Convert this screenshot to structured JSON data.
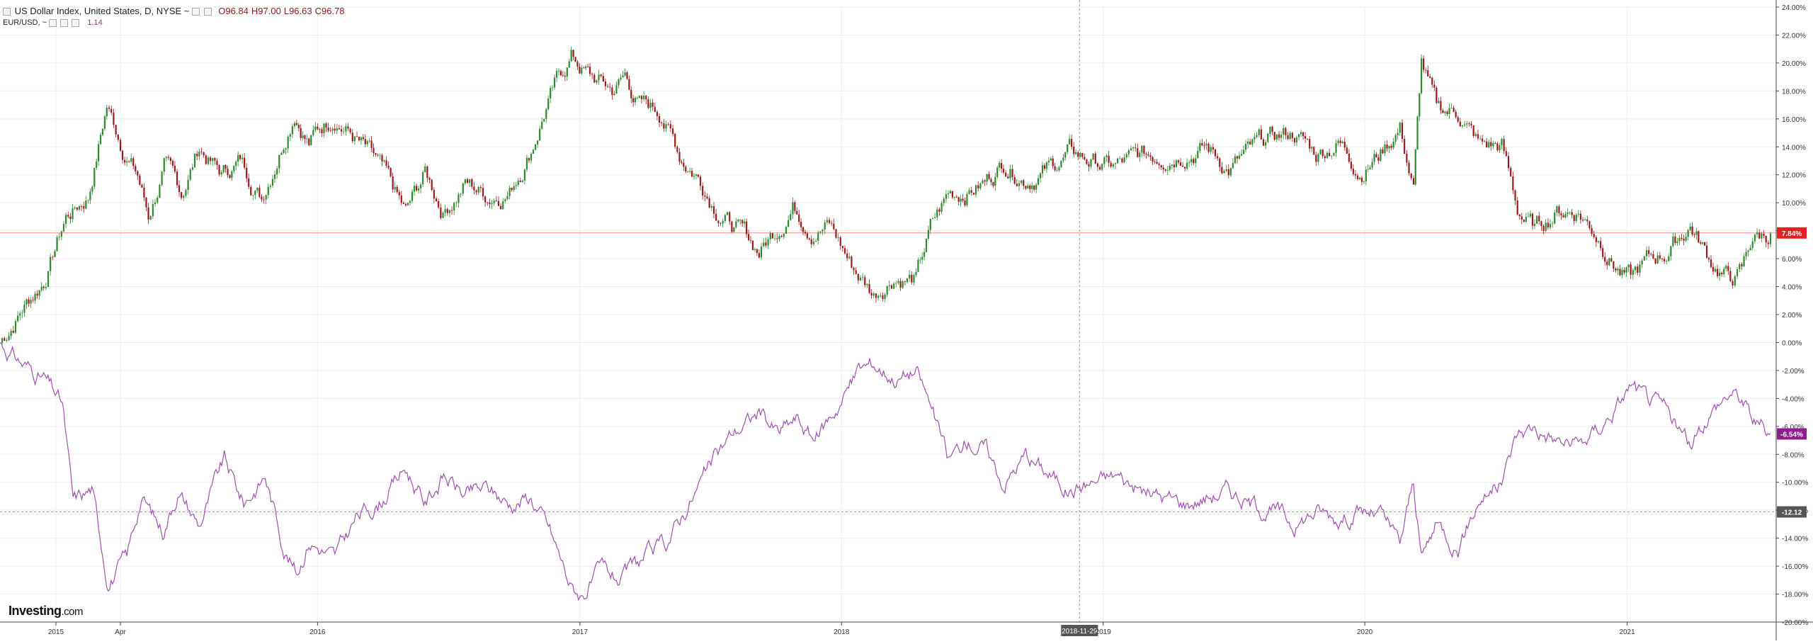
{
  "legend_main": {
    "title": "US Dollar Index, United States, D, NYSE",
    "caret": "~",
    "open": "O96.84",
    "high": "H97.00",
    "low": "L96.63",
    "close": "C96.78"
  },
  "legend_compare": {
    "symbol": "EUR/USD,",
    "caret": "~",
    "value": "1.14"
  },
  "logo": {
    "brand": "Investing",
    "suffix": ".com"
  },
  "colors": {
    "up": "#2e8b2e",
    "down": "#9b1b1b",
    "compare_line": "#a050b0",
    "ref_line": "#f28b8b",
    "grid": "#eeeeee",
    "badge_main": "#e02222",
    "badge_compare": "#8b1f8b",
    "badge_dashed": "#555555"
  },
  "chart_data": {
    "type": "line",
    "scale": "percent",
    "ylim": [
      -20,
      24
    ],
    "y_ticks": [
      "24.00%",
      "22.00%",
      "20.00%",
      "18.00%",
      "16.00%",
      "14.00%",
      "12.00%",
      "10.00%",
      "8.00%",
      "6.00%",
      "4.00%",
      "2.00%",
      "0.00%",
      "-2.00%",
      "-4.00%",
      "-6.00%",
      "-8.00%",
      "-10.00%",
      "-12.00%",
      "-14.00%",
      "-16.00%",
      "-18.00%",
      "-20.00%"
    ],
    "x_ticks": [
      {
        "label": "2015",
        "x": "2015-01-01"
      },
      {
        "label": "Apr",
        "x": "2015-04-01"
      },
      {
        "label": "2016",
        "x": "2016-01-01"
      },
      {
        "label": "2017",
        "x": "2017-01-01"
      },
      {
        "label": "2018",
        "x": "2018-01-01"
      },
      {
        "label": "2019",
        "x": "2019-01-01"
      },
      {
        "label": "2020",
        "x": "2020-01-01"
      },
      {
        "label": "2021",
        "x": "2021-01-01"
      }
    ],
    "x_range": [
      "2014-10-15",
      "2021-07-20"
    ],
    "crosshair": {
      "x": "2018-11-29",
      "label": "2018-11-29"
    },
    "series": [
      {
        "kind": "candlestick",
        "points": [
          [
            "2014-10-15",
            0.0
          ],
          [
            "2014-11-15",
            2.5
          ],
          [
            "2014-12-15",
            4.5
          ],
          [
            "2015-01-15",
            9.0
          ],
          [
            "2015-02-15",
            10.5
          ],
          [
            "2015-03-13",
            17.0
          ],
          [
            "2015-04-01",
            14.5
          ],
          [
            "2015-04-25",
            12.0
          ],
          [
            "2015-05-10",
            9.0
          ],
          [
            "2015-06-01",
            12.5
          ],
          [
            "2015-06-25",
            10.5
          ],
          [
            "2015-07-20",
            14.0
          ],
          [
            "2015-08-20",
            12.0
          ],
          [
            "2015-09-15",
            13.0
          ],
          [
            "2015-10-15",
            10.5
          ],
          [
            "2015-11-30",
            17.0
          ],
          [
            "2015-12-20",
            14.5
          ],
          [
            "2016-01-25",
            16.5
          ],
          [
            "2016-02-25",
            14.5
          ],
          [
            "2016-03-25",
            12.5
          ],
          [
            "2016-05-03",
            9.0
          ],
          [
            "2016-05-30",
            12.0
          ],
          [
            "2016-06-24",
            9.5
          ],
          [
            "2016-07-25",
            11.5
          ],
          [
            "2016-08-25",
            10.5
          ],
          [
            "2016-09-25",
            11.0
          ],
          [
            "2016-10-25",
            14.0
          ],
          [
            "2016-11-15",
            17.0
          ],
          [
            "2016-12-20",
            20.5
          ],
          [
            "2017-01-15",
            19.0
          ],
          [
            "2017-02-15",
            18.0
          ],
          [
            "2017-03-05",
            19.0
          ],
          [
            "2017-03-25",
            17.0
          ],
          [
            "2017-04-25",
            16.5
          ],
          [
            "2017-05-20",
            13.5
          ],
          [
            "2017-06-15",
            12.0
          ],
          [
            "2017-07-10",
            10.0
          ],
          [
            "2017-08-01",
            8.5
          ],
          [
            "2017-09-08",
            6.5
          ],
          [
            "2017-09-30",
            8.0
          ],
          [
            "2017-10-25",
            10.0
          ],
          [
            "2017-11-20",
            8.5
          ],
          [
            "2017-12-15",
            8.5
          ],
          [
            "2018-01-15",
            5.5
          ],
          [
            "2018-02-15",
            3.5
          ],
          [
            "2018-03-15",
            5.0
          ],
          [
            "2018-04-15",
            4.5
          ],
          [
            "2018-05-05",
            8.0
          ],
          [
            "2018-05-30",
            10.5
          ],
          [
            "2018-06-25",
            11.0
          ],
          [
            "2018-07-20",
            11.5
          ],
          [
            "2018-08-15",
            13.0
          ],
          [
            "2018-09-15",
            12.0
          ],
          [
            "2018-10-20",
            12.5
          ],
          [
            "2018-11-15",
            13.5
          ],
          [
            "2018-12-15",
            13.0
          ],
          [
            "2019-01-15",
            12.5
          ],
          [
            "2019-02-15",
            13.0
          ],
          [
            "2019-03-20",
            13.5
          ],
          [
            "2019-04-25",
            14.0
          ],
          [
            "2019-05-25",
            14.0
          ],
          [
            "2019-06-25",
            12.5
          ],
          [
            "2019-07-25",
            13.5
          ],
          [
            "2019-08-25",
            14.5
          ],
          [
            "2019-09-25",
            15.0
          ],
          [
            "2019-10-25",
            13.5
          ],
          [
            "2019-11-25",
            14.5
          ],
          [
            "2019-12-25",
            12.5
          ],
          [
            "2020-01-20",
            13.5
          ],
          [
            "2020-02-19",
            15.5
          ],
          [
            "2020-03-09",
            11.0
          ],
          [
            "2020-03-20",
            20.0
          ],
          [
            "2020-04-10",
            16.5
          ],
          [
            "2020-05-10",
            16.5
          ],
          [
            "2020-06-10",
            14.0
          ],
          [
            "2020-07-10",
            14.0
          ],
          [
            "2020-08-01",
            9.5
          ],
          [
            "2020-08-25",
            8.0
          ],
          [
            "2020-09-25",
            9.5
          ],
          [
            "2020-10-25",
            9.5
          ],
          [
            "2020-11-25",
            7.5
          ],
          [
            "2020-12-25",
            5.0
          ],
          [
            "2021-01-06",
            4.5
          ],
          [
            "2021-01-25",
            5.5
          ],
          [
            "2021-02-25",
            6.5
          ],
          [
            "2021-03-30",
            8.5
          ],
          [
            "2021-04-25",
            6.0
          ],
          [
            "2021-05-25",
            4.5
          ],
          [
            "2021-06-10",
            5.0
          ],
          [
            "2021-06-25",
            7.5
          ],
          [
            "2021-07-20",
            7.8
          ]
        ]
      },
      {
        "kind": "line",
        "points": [
          [
            "2014-10-15",
            0.0
          ],
          [
            "2014-11-15",
            -1.5
          ],
          [
            "2014-12-15",
            -2.5
          ],
          [
            "2015-01-10",
            -4.5
          ],
          [
            "2015-01-25",
            -11.5
          ],
          [
            "2015-02-20",
            -10.5
          ],
          [
            "2015-03-15",
            -17.0
          ],
          [
            "2015-04-10",
            -15.5
          ],
          [
            "2015-04-30",
            -11.0
          ],
          [
            "2015-05-30",
            -13.5
          ],
          [
            "2015-06-20",
            -10.5
          ],
          [
            "2015-07-20",
            -13.0
          ],
          [
            "2015-08-24",
            -8.5
          ],
          [
            "2015-09-20",
            -11.5
          ],
          [
            "2015-10-20",
            -9.5
          ],
          [
            "2015-11-15",
            -14.5
          ],
          [
            "2015-12-03",
            -16.5
          ],
          [
            "2015-12-20",
            -14.0
          ],
          [
            "2016-01-25",
            -15.5
          ],
          [
            "2016-02-25",
            -12.5
          ],
          [
            "2016-03-25",
            -11.5
          ],
          [
            "2016-05-03",
            -9.0
          ],
          [
            "2016-05-30",
            -11.5
          ],
          [
            "2016-06-25",
            -9.5
          ],
          [
            "2016-07-25",
            -11.0
          ],
          [
            "2016-08-25",
            -10.5
          ],
          [
            "2016-09-25",
            -11.5
          ],
          [
            "2016-10-25",
            -11.0
          ],
          [
            "2016-11-20",
            -13.5
          ],
          [
            "2016-12-20",
            -17.5
          ],
          [
            "2017-01-03",
            -18.0
          ],
          [
            "2017-02-01",
            -16.5
          ],
          [
            "2017-03-01",
            -17.0
          ],
          [
            "2017-04-01",
            -15.5
          ],
          [
            "2017-05-01",
            -14.5
          ],
          [
            "2017-06-01",
            -11.5
          ],
          [
            "2017-07-01",
            -9.0
          ],
          [
            "2017-08-01",
            -6.5
          ],
          [
            "2017-09-08",
            -5.0
          ],
          [
            "2017-10-05",
            -6.5
          ],
          [
            "2017-10-30",
            -5.5
          ],
          [
            "2017-11-25",
            -7.0
          ],
          [
            "2017-12-20",
            -5.0
          ],
          [
            "2018-01-25",
            -2.0
          ],
          [
            "2018-02-15",
            -1.5
          ],
          [
            "2018-03-20",
            -2.5
          ],
          [
            "2018-04-15",
            -2.0
          ],
          [
            "2018-05-05",
            -4.5
          ],
          [
            "2018-05-30",
            -8.5
          ],
          [
            "2018-06-25",
            -7.0
          ],
          [
            "2018-07-20",
            -7.5
          ],
          [
            "2018-08-15",
            -10.0
          ],
          [
            "2018-09-15",
            -8.0
          ],
          [
            "2018-10-20",
            -9.5
          ],
          [
            "2018-11-15",
            -10.5
          ],
          [
            "2018-12-15",
            -10.0
          ],
          [
            "2019-01-20",
            -9.5
          ],
          [
            "2019-02-20",
            -10.5
          ],
          [
            "2019-03-20",
            -11.0
          ],
          [
            "2019-04-25",
            -11.5
          ],
          [
            "2019-05-25",
            -11.0
          ],
          [
            "2019-06-25",
            -10.5
          ],
          [
            "2019-07-25",
            -11.5
          ],
          [
            "2019-08-25",
            -12.0
          ],
          [
            "2019-09-25",
            -13.0
          ],
          [
            "2019-10-25",
            -12.0
          ],
          [
            "2019-11-25",
            -12.5
          ],
          [
            "2019-12-25",
            -12.0
          ],
          [
            "2020-01-25",
            -12.5
          ],
          [
            "2020-02-19",
            -14.5
          ],
          [
            "2020-03-09",
            -10.0
          ],
          [
            "2020-03-20",
            -15.5
          ],
          [
            "2020-04-10",
            -13.0
          ],
          [
            "2020-05-10",
            -14.5
          ],
          [
            "2020-06-10",
            -11.0
          ],
          [
            "2020-07-10",
            -10.0
          ],
          [
            "2020-08-01",
            -6.5
          ],
          [
            "2020-08-25",
            -6.0
          ],
          [
            "2020-09-25",
            -7.0
          ],
          [
            "2020-10-25",
            -7.5
          ],
          [
            "2020-11-25",
            -6.0
          ],
          [
            "2020-12-25",
            -4.0
          ],
          [
            "2021-01-06",
            -3.0
          ],
          [
            "2021-01-25",
            -4.0
          ],
          [
            "2021-02-25",
            -5.0
          ],
          [
            "2021-03-30",
            -7.5
          ],
          [
            "2021-04-25",
            -5.0
          ],
          [
            "2021-05-25",
            -3.5
          ],
          [
            "2021-06-10",
            -4.0
          ],
          [
            "2021-06-25",
            -5.5
          ],
          [
            "2021-07-20",
            -6.5
          ]
        ]
      }
    ],
    "reference_lines": [
      {
        "y": 7.84,
        "style": "solid",
        "label": "7.84%"
      },
      {
        "y": -12.12,
        "style": "dashed",
        "label": "-12.12"
      }
    ],
    "last_value_badges": [
      {
        "series": 1,
        "y": -6.54,
        "label": "-6.54%"
      }
    ]
  }
}
